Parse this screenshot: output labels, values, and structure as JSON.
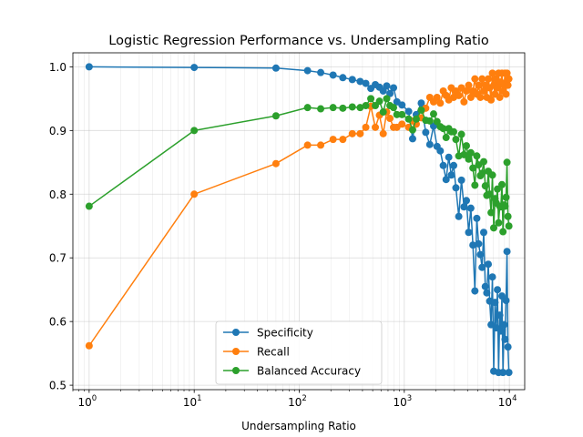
{
  "chart_data": {
    "type": "line",
    "title": "Logistic Regression Performance vs. Undersampling Ratio",
    "xlabel": "Undersampling Ratio",
    "ylabel": "",
    "xscale": "log",
    "xlim": [
      0.7,
      14000
    ],
    "ylim": [
      0.493,
      1.022
    ],
    "grid": true,
    "legend_position": "lower-center",
    "x_tick_labels": [
      {
        "value": 1,
        "base": "10",
        "exp": "0"
      },
      {
        "value": 10,
        "base": "10",
        "exp": "1"
      },
      {
        "value": 100,
        "base": "10",
        "exp": "2"
      },
      {
        "value": 1000,
        "base": "10",
        "exp": "3"
      },
      {
        "value": 10000,
        "base": "10",
        "exp": "4"
      }
    ],
    "y_ticks": [
      0.5,
      0.6,
      0.7,
      0.8,
      0.9,
      1.0
    ],
    "y_tick_labels": [
      "0.5",
      "0.6",
      "0.7",
      "0.8",
      "0.9",
      "1.0"
    ],
    "series": [
      {
        "name": "Specificity",
        "color": "#1f77b4",
        "x": [
          1,
          10,
          60,
          120,
          160,
          210,
          260,
          320,
          380,
          430,
          480,
          530,
          580,
          630,
          680,
          730,
          790,
          850,
          950,
          1100,
          1200,
          1300,
          1450,
          1600,
          1750,
          1900,
          2050,
          2200,
          2350,
          2500,
          2650,
          2800,
          2950,
          3100,
          3300,
          3500,
          3700,
          3900,
          4100,
          4300,
          4500,
          4700,
          4900,
          5100,
          5300,
          5500,
          5700,
          5900,
          6100,
          6300,
          6500,
          6700,
          6900,
          7100,
          7300,
          7500,
          7700,
          7900,
          8100,
          8300,
          8500,
          8700,
          8900,
          9100,
          9300,
          9500,
          9700,
          9900
        ],
        "values": [
          1.0,
          0.999,
          0.998,
          0.994,
          0.991,
          0.987,
          0.983,
          0.98,
          0.977,
          0.974,
          0.966,
          0.972,
          0.968,
          0.962,
          0.97,
          0.958,
          0.967,
          0.945,
          0.94,
          0.93,
          0.887,
          0.925,
          0.943,
          0.897,
          0.878,
          0.907,
          0.875,
          0.868,
          0.845,
          0.823,
          0.858,
          0.83,
          0.845,
          0.81,
          0.765,
          0.822,
          0.78,
          0.79,
          0.74,
          0.778,
          0.72,
          0.648,
          0.762,
          0.722,
          0.705,
          0.685,
          0.74,
          0.655,
          0.645,
          0.69,
          0.632,
          0.595,
          0.67,
          0.522,
          0.63,
          0.59,
          0.65,
          0.52,
          0.61,
          0.585,
          0.64,
          0.52,
          0.595,
          0.572,
          0.633,
          0.71,
          0.56,
          0.52
        ]
      },
      {
        "name": "Recall",
        "color": "#ff7f0e",
        "x": [
          1,
          10,
          60,
          120,
          160,
          210,
          260,
          320,
          380,
          430,
          480,
          530,
          580,
          630,
          680,
          730,
          790,
          850,
          950,
          1100,
          1200,
          1300,
          1450,
          1600,
          1750,
          1900,
          2050,
          2200,
          2350,
          2500,
          2650,
          2800,
          2950,
          3100,
          3300,
          3500,
          3700,
          3900,
          4100,
          4300,
          4500,
          4700,
          4900,
          5100,
          5300,
          5500,
          5700,
          5900,
          6100,
          6300,
          6500,
          6700,
          6900,
          7100,
          7300,
          7500,
          7700,
          7900,
          8100,
          8300,
          8500,
          8700,
          8900,
          9100,
          9300,
          9500,
          9700,
          9900
        ],
        "values": [
          0.562,
          0.8,
          0.848,
          0.877,
          0.877,
          0.886,
          0.886,
          0.895,
          0.895,
          0.905,
          0.938,
          0.905,
          0.924,
          0.895,
          0.929,
          0.919,
          0.905,
          0.905,
          0.91,
          0.905,
          0.915,
          0.91,
          0.92,
          0.935,
          0.952,
          0.945,
          0.952,
          0.943,
          0.962,
          0.955,
          0.948,
          0.967,
          0.952,
          0.962,
          0.955,
          0.967,
          0.945,
          0.962,
          0.971,
          0.952,
          0.962,
          0.981,
          0.957,
          0.971,
          0.952,
          0.981,
          0.962,
          0.971,
          0.952,
          0.981,
          0.967,
          0.948,
          0.99,
          0.971,
          0.957,
          0.981,
          0.967,
          0.99,
          0.952,
          0.976,
          0.99,
          0.962,
          0.971,
          0.99,
          0.957,
          0.99,
          0.971,
          0.981
        ]
      },
      {
        "name": "Balanced Accuracy",
        "color": "#2ca02c",
        "x": [
          1,
          10,
          60,
          120,
          160,
          210,
          260,
          320,
          380,
          430,
          480,
          530,
          580,
          630,
          680,
          730,
          790,
          850,
          950,
          1100,
          1200,
          1300,
          1450,
          1600,
          1750,
          1900,
          2050,
          2200,
          2350,
          2500,
          2650,
          2800,
          2950,
          3100,
          3300,
          3500,
          3700,
          3900,
          4100,
          4300,
          4500,
          4700,
          4900,
          5100,
          5300,
          5500,
          5700,
          5900,
          6100,
          6300,
          6500,
          6700,
          6900,
          7100,
          7300,
          7500,
          7700,
          7900,
          8100,
          8300,
          8500,
          8700,
          8900,
          9100,
          9300,
          9500,
          9700,
          9900
        ],
        "values": [
          0.781,
          0.9,
          0.923,
          0.936,
          0.934,
          0.936,
          0.935,
          0.937,
          0.936,
          0.939,
          0.95,
          0.939,
          0.946,
          0.929,
          0.95,
          0.939,
          0.936,
          0.925,
          0.925,
          0.918,
          0.901,
          0.918,
          0.932,
          0.916,
          0.915,
          0.926,
          0.914,
          0.906,
          0.903,
          0.889,
          0.903,
          0.898,
          0.898,
          0.886,
          0.86,
          0.894,
          0.862,
          0.876,
          0.855,
          0.865,
          0.841,
          0.814,
          0.86,
          0.846,
          0.829,
          0.833,
          0.851,
          0.813,
          0.798,
          0.836,
          0.8,
          0.771,
          0.83,
          0.747,
          0.793,
          0.786,
          0.808,
          0.755,
          0.781,
          0.78,
          0.815,
          0.741,
          0.783,
          0.781,
          0.795,
          0.85,
          0.765,
          0.75
        ]
      }
    ]
  }
}
